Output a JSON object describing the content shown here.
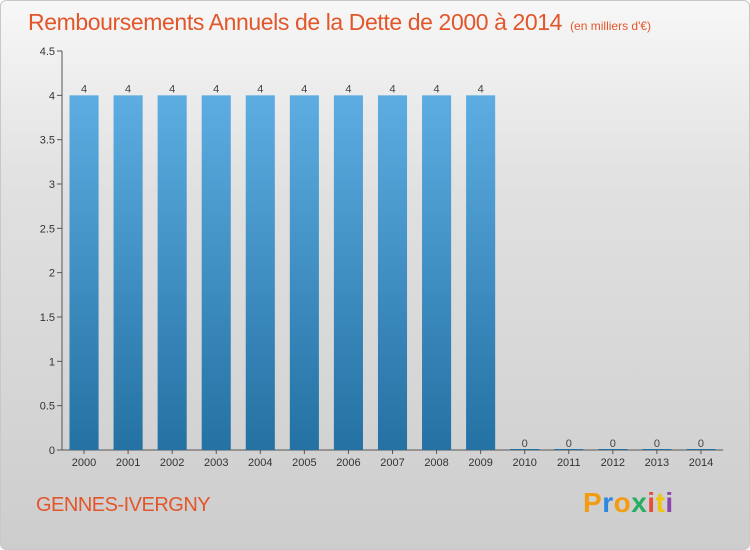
{
  "title": "Remboursements Annuels de la Dette de 2000 à 2014",
  "unit_note": "(en milliers d'€)",
  "city": "GENNES-IVERGNY",
  "logo": {
    "text": "Proxiti",
    "colors": [
      "#f39c12",
      "#2e86de",
      "#f39c12",
      "#27ae60",
      "#e74c3c",
      "#f1c40f",
      "#8e44ad"
    ]
  },
  "colors": {
    "title": "#e2562a",
    "bar_top": "#5dade2",
    "bar_bottom": "#2471a3",
    "axis": "#555555"
  },
  "chart_data": {
    "type": "bar",
    "categories": [
      "2000",
      "2001",
      "2002",
      "2003",
      "2004",
      "2005",
      "2006",
      "2007",
      "2008",
      "2009",
      "2010",
      "2011",
      "2012",
      "2013",
      "2014"
    ],
    "values": [
      4,
      4,
      4,
      4,
      4,
      4,
      4,
      4,
      4,
      4,
      0,
      0,
      0,
      0,
      0
    ],
    "title": "Remboursements Annuels de la Dette de 2000 à 2014",
    "xlabel": "",
    "ylabel": "",
    "ylim": [
      0,
      4.5
    ],
    "yticks": [
      "0",
      "0.5",
      "1",
      "1.5",
      "2",
      "2.5",
      "3",
      "3.5",
      "4",
      "4.5"
    ],
    "data_labels": true,
    "grid": false
  }
}
